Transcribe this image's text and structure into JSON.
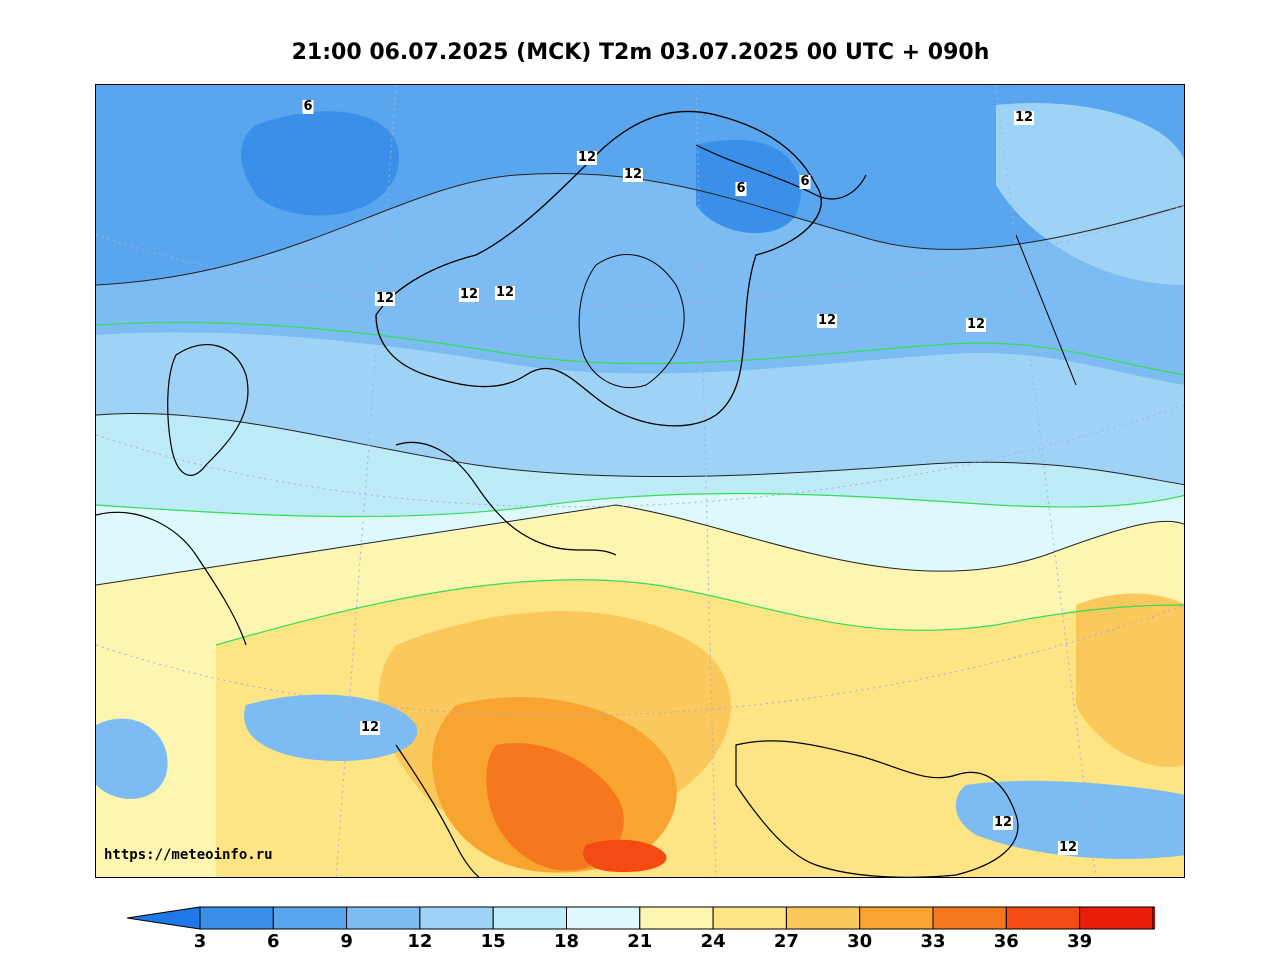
{
  "title": "21:00 06.07.2025 (MCK) T2m 03.07.2025 00 UTC + 090h",
  "source_url": "https://meteoinfo.ru",
  "contour_labels": [
    "6",
    "12",
    "12",
    "6",
    "6",
    "12",
    "12",
    "12",
    "12",
    "12",
    "12",
    "12",
    "12",
    "12"
  ],
  "colorbar": {
    "ticks": [
      "3",
      "6",
      "9",
      "12",
      "15",
      "18",
      "21",
      "24",
      "27",
      "30",
      "33",
      "36",
      "39"
    ],
    "colors": [
      "#1f78e8",
      "#3a8fe8",
      "#5aa6ee",
      "#7cbcf2",
      "#9ed3f6",
      "#bdebf7",
      "#def9fb",
      "#fdf5b0",
      "#fde484",
      "#fbc85c",
      "#f8a431",
      "#f6781e",
      "#f44b12",
      "#e81d0a",
      "#c80e04"
    ]
  },
  "legend": {
    "cold_extreme_color": "#1f78e8",
    "hot_extreme_color": "#c80e04"
  }
}
